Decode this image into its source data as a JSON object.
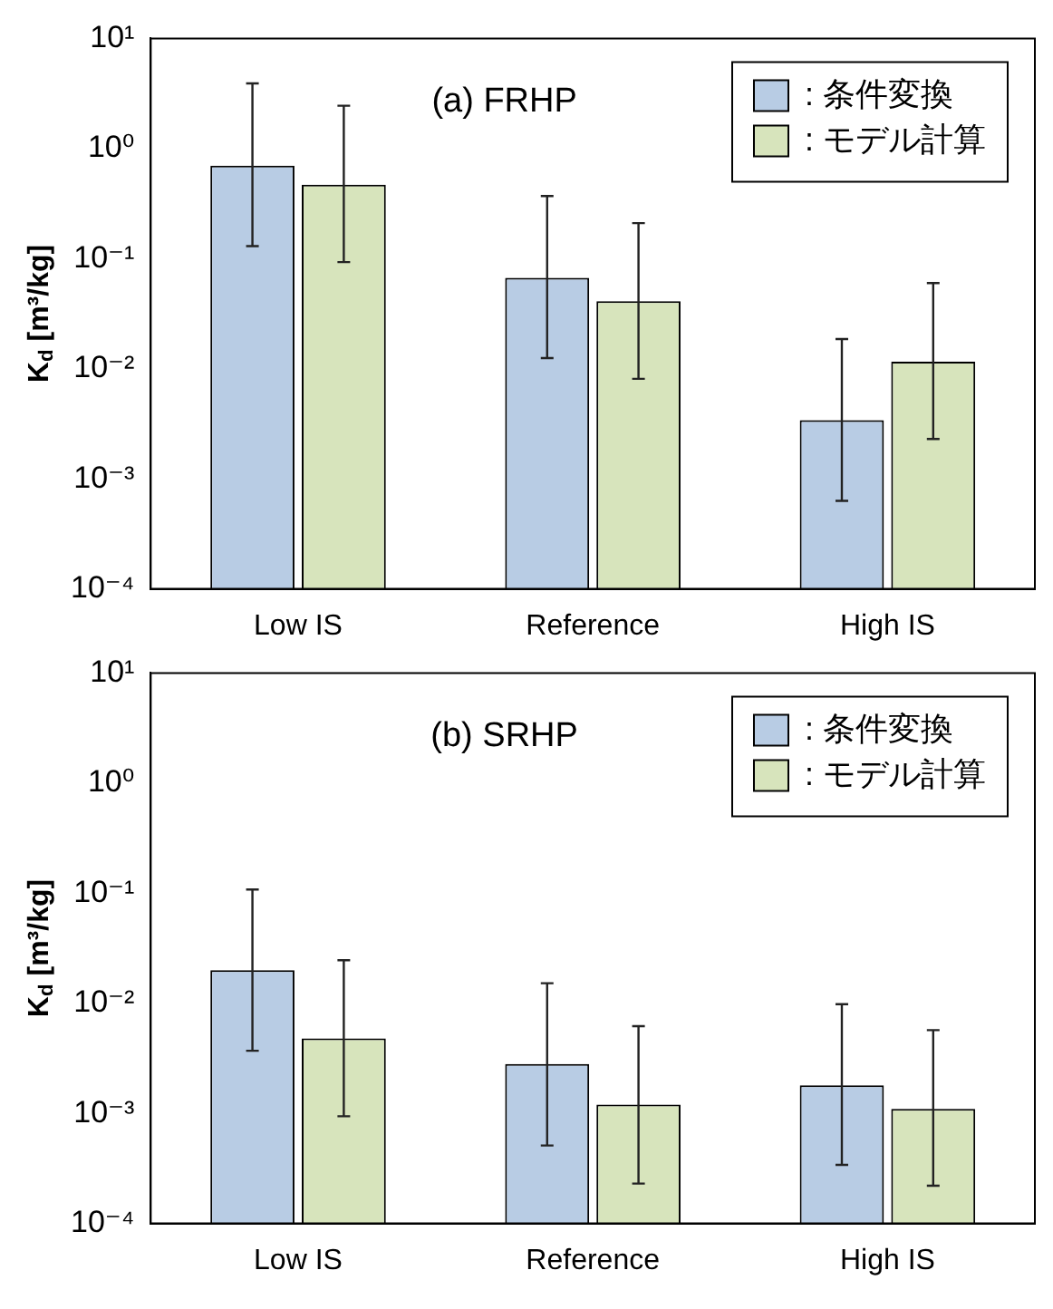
{
  "chart_data": [
    {
      "type": "bar",
      "title": "(a) FRHP",
      "ylabel": "K$_{d}$ [m³/kg]",
      "categories": [
        "Low IS",
        "Reference",
        "High IS"
      ],
      "log": true,
      "ylim": [
        0.0001,
        10
      ],
      "yticks": [
        {
          "value": 0.0001,
          "label": "10⁻⁴"
        },
        {
          "value": 0.001,
          "label": "10⁻³"
        },
        {
          "value": 0.01,
          "label": "10⁻²"
        },
        {
          "value": 0.1,
          "label": "10⁻¹"
        },
        {
          "value": 1,
          "label": "10⁰"
        },
        {
          "value": 10,
          "label": "10¹"
        }
      ],
      "legend": "top right",
      "series": [
        {
          "name": ": 条件変換",
          "color": "#b8cce4",
          "values": [
            0.7,
            0.067,
            0.0034
          ],
          "errors": [
            [
              0.13,
              3.9
            ],
            [
              0.0125,
              0.37
            ],
            [
              0.00063,
              0.0186
            ]
          ]
        },
        {
          "name": ": モデル計算",
          "color": "#d7e4bc",
          "values": [
            0.47,
            0.041,
            0.0116
          ],
          "errors": [
            [
              0.093,
              2.45
            ],
            [
              0.0081,
              0.21
            ],
            [
              0.0023,
              0.06
            ]
          ]
        }
      ]
    },
    {
      "type": "bar",
      "title": "(b) SRHP",
      "ylabel": "K$_{d}$ [m³/kg]",
      "categories": [
        "Low IS",
        "Reference",
        "High IS"
      ],
      "log": true,
      "ylim": [
        0.0001,
        10
      ],
      "yticks": [
        {
          "value": 0.0001,
          "label": "10⁻⁴"
        },
        {
          "value": 0.001,
          "label": "10⁻³"
        },
        {
          "value": 0.01,
          "label": "10⁻²"
        },
        {
          "value": 0.1,
          "label": "10⁻¹"
        },
        {
          "value": 1,
          "label": "10⁰"
        },
        {
          "value": 10,
          "label": "10¹"
        }
      ],
      "legend": "top right",
      "series": [
        {
          "name": ": 条件変換",
          "color": "#b8cce4",
          "values": [
            0.02,
            0.0028,
            0.0018
          ],
          "errors": [
            [
              0.0037,
              0.108
            ],
            [
              0.00051,
              0.0152
            ],
            [
              0.00034,
              0.0098
            ]
          ]
        },
        {
          "name": ": モデル計算",
          "color": "#d7e4bc",
          "values": [
            0.0048,
            0.0012,
            0.0011
          ],
          "errors": [
            [
              0.00094,
              0.0246
            ],
            [
              0.00023,
              0.0062
            ],
            [
              0.00022,
              0.0057
            ]
          ]
        }
      ]
    }
  ]
}
